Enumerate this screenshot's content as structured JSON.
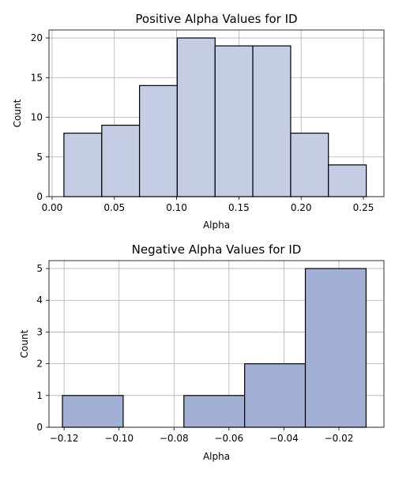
{
  "chart_data": [
    {
      "type": "bar",
      "title": "Positive Alpha Values for ID",
      "xlabel": "Alpha",
      "ylabel": "Count",
      "xlim": [
        -0.0025,
        0.2665
      ],
      "ylim": [
        0,
        21
      ],
      "xticks": [
        0.0,
        0.05,
        0.1,
        0.15,
        0.2,
        0.25
      ],
      "xtick_labels": [
        "0.00",
        "0.05",
        "0.10",
        "0.15",
        "0.20",
        "0.25"
      ],
      "yticks": [
        0,
        5,
        10,
        15,
        20
      ],
      "ytick_labels": [
        "0",
        "5",
        "10",
        "15",
        "20"
      ],
      "bin_edges": [
        0.0095,
        0.0399,
        0.0702,
        0.1005,
        0.1309,
        0.1612,
        0.1916,
        0.2219,
        0.2523
      ],
      "values": [
        8,
        9,
        14,
        20,
        19,
        19,
        8,
        4
      ],
      "grid": true,
      "bar_color": "#c4cde3"
    },
    {
      "type": "bar",
      "title": "Negative Alpha Values for ID",
      "xlabel": "Alpha",
      "ylabel": "Count",
      "xlim": [
        -0.1255,
        -0.0036
      ],
      "ylim": [
        0,
        5.25
      ],
      "xticks": [
        -0.12,
        -0.1,
        -0.08,
        -0.06,
        -0.04,
        -0.02
      ],
      "xtick_labels": [
        "−0.12",
        "−0.10",
        "−0.08",
        "−0.06",
        "−0.04",
        "−0.02"
      ],
      "yticks": [
        0,
        1,
        2,
        3,
        4,
        5
      ],
      "ytick_labels": [
        "0",
        "1",
        "2",
        "3",
        "4",
        "5"
      ],
      "bin_edges": [
        -0.1206,
        -0.0985,
        -0.0764,
        -0.0543,
        -0.0322,
        -0.0101
      ],
      "values": [
        1,
        0,
        1,
        2,
        5
      ],
      "grid": true,
      "bar_color": "#a3b0d5"
    }
  ]
}
